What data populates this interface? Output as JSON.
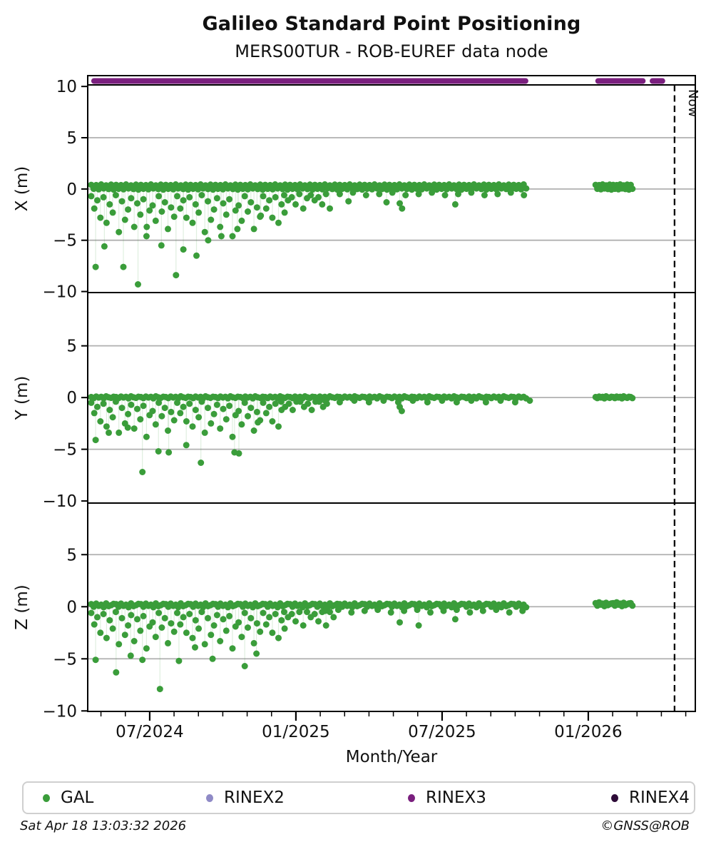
{
  "page": {
    "footer_left": "Sat Apr 18 13:03:32 2026",
    "footer_right": "©GNSS@ROB"
  },
  "legend": {
    "items": [
      {
        "label": "GAL",
        "color_ref": "gal"
      },
      {
        "label": "RINEX2",
        "color_ref": "rinex2"
      },
      {
        "label": "RINEX3",
        "color_ref": "rinex3"
      },
      {
        "label": "RINEX4",
        "color_ref": "rinex4"
      }
    ]
  },
  "chart_data": {
    "type": "scatter",
    "title": "Galileo Standard Point Positioning",
    "subtitle": "MERS00TUR - ROB-EUREF data node",
    "xlabel": "Month/Year",
    "x_unit": "decimal_year",
    "x_domain": [
      2024.288,
      2026.366
    ],
    "x_major_ticks": [
      {
        "t": 2024.5,
        "label": "07/2024"
      },
      {
        "t": 2025.0,
        "label": "01/2025"
      },
      {
        "t": 2025.5,
        "label": "07/2025"
      },
      {
        "t": 2026.0,
        "label": "01/2026"
      }
    ],
    "x_minor_tick_months": {
      "first": 2024.3333,
      "last": 2026.3333,
      "step": 0.083333
    },
    "now_marker": {
      "t": 2026.295,
      "label": "Now"
    },
    "grid": true,
    "legend_position": "bottom",
    "colors": {
      "gal": "#3a9d3a",
      "rinex2": "#8f8ac6",
      "rinex3": "#7a1f7e",
      "rinex4": "#2e0b38",
      "grid": "#b0b0b0",
      "stem": "rgba(58,157,58,0.16)",
      "axis": "#000000"
    },
    "availability_strip": {
      "series": "RINEX3",
      "color_ref": "rinex3",
      "segments": [
        [
          2024.3,
          2025.795
        ],
        [
          2026.024,
          2026.196
        ],
        [
          2026.21,
          2026.263
        ]
      ]
    },
    "panels": [
      {
        "name": "X",
        "ylabel": "X (m)",
        "series": "GAL",
        "color_ref": "gal",
        "ylim": [
          -10.1,
          10.15
        ],
        "grid_values": [
          5,
          0,
          -5
        ],
        "yticks": [
          {
            "v": 10,
            "label": "10"
          },
          {
            "v": 5,
            "label": "5"
          },
          {
            "v": 0,
            "label": "0"
          },
          {
            "v": -5,
            "label": "−5"
          },
          {
            "v": -10,
            "label": "−10"
          }
        ],
        "base_runs": [
          {
            "t0": 2024.3,
            "t1": 2025.79,
            "step": 0.0085,
            "pattern": [
              0.4,
              0.02,
              0.38,
              -0.03,
              0.44,
              0.05,
              0.36,
              0.0,
              0.42,
              -0.06
            ]
          },
          {
            "t0": 2026.025,
            "t1": 2026.15,
            "step": 0.006,
            "pattern": [
              0.4,
              0.02,
              0.38,
              -0.03,
              0.44,
              0.05,
              0.36,
              0.0,
              0.42,
              -0.06
            ]
          }
        ],
        "noise_runs": [
          {
            "t0": 2024.3,
            "t1": 2024.96,
            "step": 0.0105,
            "pattern": [
              -0.7,
              -1.9,
              -1.1,
              -2.8,
              -0.8,
              -3.3,
              -1.5,
              -2.3,
              -0.6,
              -4.2,
              -1.2,
              -3.0,
              -2.0,
              -0.9,
              -3.7,
              -1.4,
              -2.5,
              -1.0,
              -4.6,
              -2.1,
              -1.6,
              -3.1,
              -0.7,
              -2.2,
              -1.3,
              -3.9,
              -1.8,
              -2.7
            ]
          },
          {
            "t0": 2024.96,
            "t1": 2025.12,
            "step": 0.013,
            "pattern": [
              -0.6,
              -1.1,
              -0.8,
              -1.5,
              -0.5,
              -1.9,
              -0.9
            ]
          },
          {
            "t0": 2025.15,
            "t1": 2025.78,
            "step": 0.045,
            "pattern": [
              -0.5,
              -0.35,
              -0.6
            ]
          }
        ],
        "outliers": [
          [
            2024.315,
            -7.6
          ],
          [
            2024.345,
            -5.6
          ],
          [
            2024.41,
            -7.6
          ],
          [
            2024.46,
            -9.3
          ],
          [
            2024.49,
            -3.7
          ],
          [
            2024.54,
            -5.5
          ],
          [
            2024.59,
            -8.4
          ],
          [
            2024.615,
            -5.9
          ],
          [
            2024.66,
            -6.5
          ],
          [
            2024.7,
            -5.0
          ],
          [
            2024.745,
            -4.6
          ],
          [
            2024.8,
            -3.9
          ],
          [
            2024.88,
            -2.6
          ],
          [
            2025.18,
            -1.2
          ],
          [
            2025.31,
            -1.3
          ],
          [
            2025.355,
            -1.4
          ],
          [
            2025.363,
            -1.9
          ],
          [
            2025.545,
            -1.5
          ]
        ]
      },
      {
        "name": "Y",
        "ylabel": "Y (m)",
        "series": "GAL",
        "color_ref": "gal",
        "ylim": [
          -10.2,
          10.15
        ],
        "grid_values": [
          5,
          0,
          -5
        ],
        "yticks": [
          {
            "v": 5,
            "label": "5"
          },
          {
            "v": 0,
            "label": "0"
          },
          {
            "v": -5,
            "label": "−5"
          },
          {
            "v": -10,
            "label": "−10"
          }
        ],
        "base_runs": [
          {
            "t0": 2024.3,
            "t1": 2025.79,
            "step": 0.0085,
            "pattern": [
              0.05,
              -0.05,
              0.1,
              0.0,
              0.07,
              -0.08,
              0.12,
              0.02,
              -0.03,
              0.08
            ]
          },
          {
            "t0": 2026.025,
            "t1": 2026.15,
            "step": 0.006,
            "pattern": [
              0.05,
              -0.05,
              0.1,
              0.0,
              0.07,
              -0.08,
              0.12,
              0.02,
              -0.03,
              0.08
            ]
          }
        ],
        "noise_runs": [
          {
            "t0": 2024.3,
            "t1": 2024.95,
            "step": 0.0105,
            "pattern": [
              -0.5,
              -1.5,
              -0.9,
              -2.3,
              -0.6,
              -2.8,
              -1.2,
              -1.9,
              -0.4,
              -3.4,
              -1.0,
              -2.5,
              -1.6,
              -0.7,
              -3.0,
              -1.1,
              -2.1,
              -0.8,
              -3.8,
              -1.7,
              -1.3,
              -2.6,
              -0.5,
              -1.8,
              -1.0,
              -3.2,
              -1.4,
              -2.2
            ]
          },
          {
            "t0": 2024.95,
            "t1": 2025.1,
            "step": 0.013,
            "pattern": [
              -0.4,
              -0.9,
              -0.6,
              -1.2,
              -0.4
            ]
          },
          {
            "t0": 2025.1,
            "t1": 2025.78,
            "step": 0.05,
            "pattern": [
              -0.3,
              -0.45
            ]
          }
        ],
        "outliers": [
          [
            2024.315,
            -4.1
          ],
          [
            2024.36,
            -3.4
          ],
          [
            2024.425,
            -2.9
          ],
          [
            2024.475,
            -7.2
          ],
          [
            2024.53,
            -5.2
          ],
          [
            2024.565,
            -5.3
          ],
          [
            2024.625,
            -4.6
          ],
          [
            2024.675,
            -6.3
          ],
          [
            2024.79,
            -5.3
          ],
          [
            2024.805,
            -5.4
          ],
          [
            2024.87,
            -2.4
          ],
          [
            2025.355,
            -0.9
          ],
          [
            2025.362,
            -1.3
          ]
        ]
      },
      {
        "name": "Z",
        "ylabel": "Z (m)",
        "series": "GAL",
        "color_ref": "gal",
        "ylim": [
          -10.05,
          9.95
        ],
        "grid_values": [
          5,
          0,
          -5
        ],
        "yticks": [
          {
            "v": 5,
            "label": "5"
          },
          {
            "v": 0,
            "label": "0"
          },
          {
            "v": -5,
            "label": "−5"
          },
          {
            "v": -10,
            "label": "−10"
          }
        ],
        "base_runs": [
          {
            "t0": 2024.3,
            "t1": 2025.79,
            "step": 0.0085,
            "pattern": [
              0.25,
              0.0,
              0.3,
              0.08,
              0.2,
              -0.05,
              0.32,
              0.05,
              0.15,
              0.28
            ]
          },
          {
            "t0": 2026.025,
            "t1": 2026.15,
            "step": 0.006,
            "pattern": [
              0.35,
              0.1,
              0.42,
              0.2,
              0.3,
              0.05,
              0.38,
              0.15,
              0.25,
              0.32
            ]
          }
        ],
        "noise_runs": [
          {
            "t0": 2024.3,
            "t1": 2024.96,
            "step": 0.0105,
            "pattern": [
              -0.6,
              -1.7,
              -1.0,
              -2.5,
              -0.7,
              -3.0,
              -1.3,
              -2.1,
              -0.5,
              -3.6,
              -1.1,
              -2.7,
              -1.8,
              -0.8,
              -3.3,
              -1.2,
              -2.3,
              -0.9,
              -4.0,
              -1.9,
              -1.5,
              -2.9,
              -0.6,
              -2.0,
              -1.1,
              -3.5,
              -1.6,
              -2.4
            ]
          },
          {
            "t0": 2024.96,
            "t1": 2025.13,
            "step": 0.013,
            "pattern": [
              -0.5,
              -1.0,
              -0.7,
              -1.4,
              -0.5,
              -1.8
            ]
          },
          {
            "t0": 2025.1,
            "t1": 2025.78,
            "step": 0.045,
            "pattern": [
              -0.4,
              -0.3,
              -0.55
            ]
          }
        ],
        "outliers": [
          [
            2024.315,
            -5.1
          ],
          [
            2024.385,
            -6.3
          ],
          [
            2024.435,
            -4.7
          ],
          [
            2024.475,
            -5.1
          ],
          [
            2024.535,
            -7.9
          ],
          [
            2024.6,
            -5.2
          ],
          [
            2024.655,
            -3.9
          ],
          [
            2024.715,
            -5.0
          ],
          [
            2024.825,
            -5.7
          ],
          [
            2024.865,
            -4.5
          ],
          [
            2025.355,
            -1.5
          ],
          [
            2025.42,
            -1.8
          ],
          [
            2025.545,
            -1.2
          ]
        ]
      }
    ]
  }
}
